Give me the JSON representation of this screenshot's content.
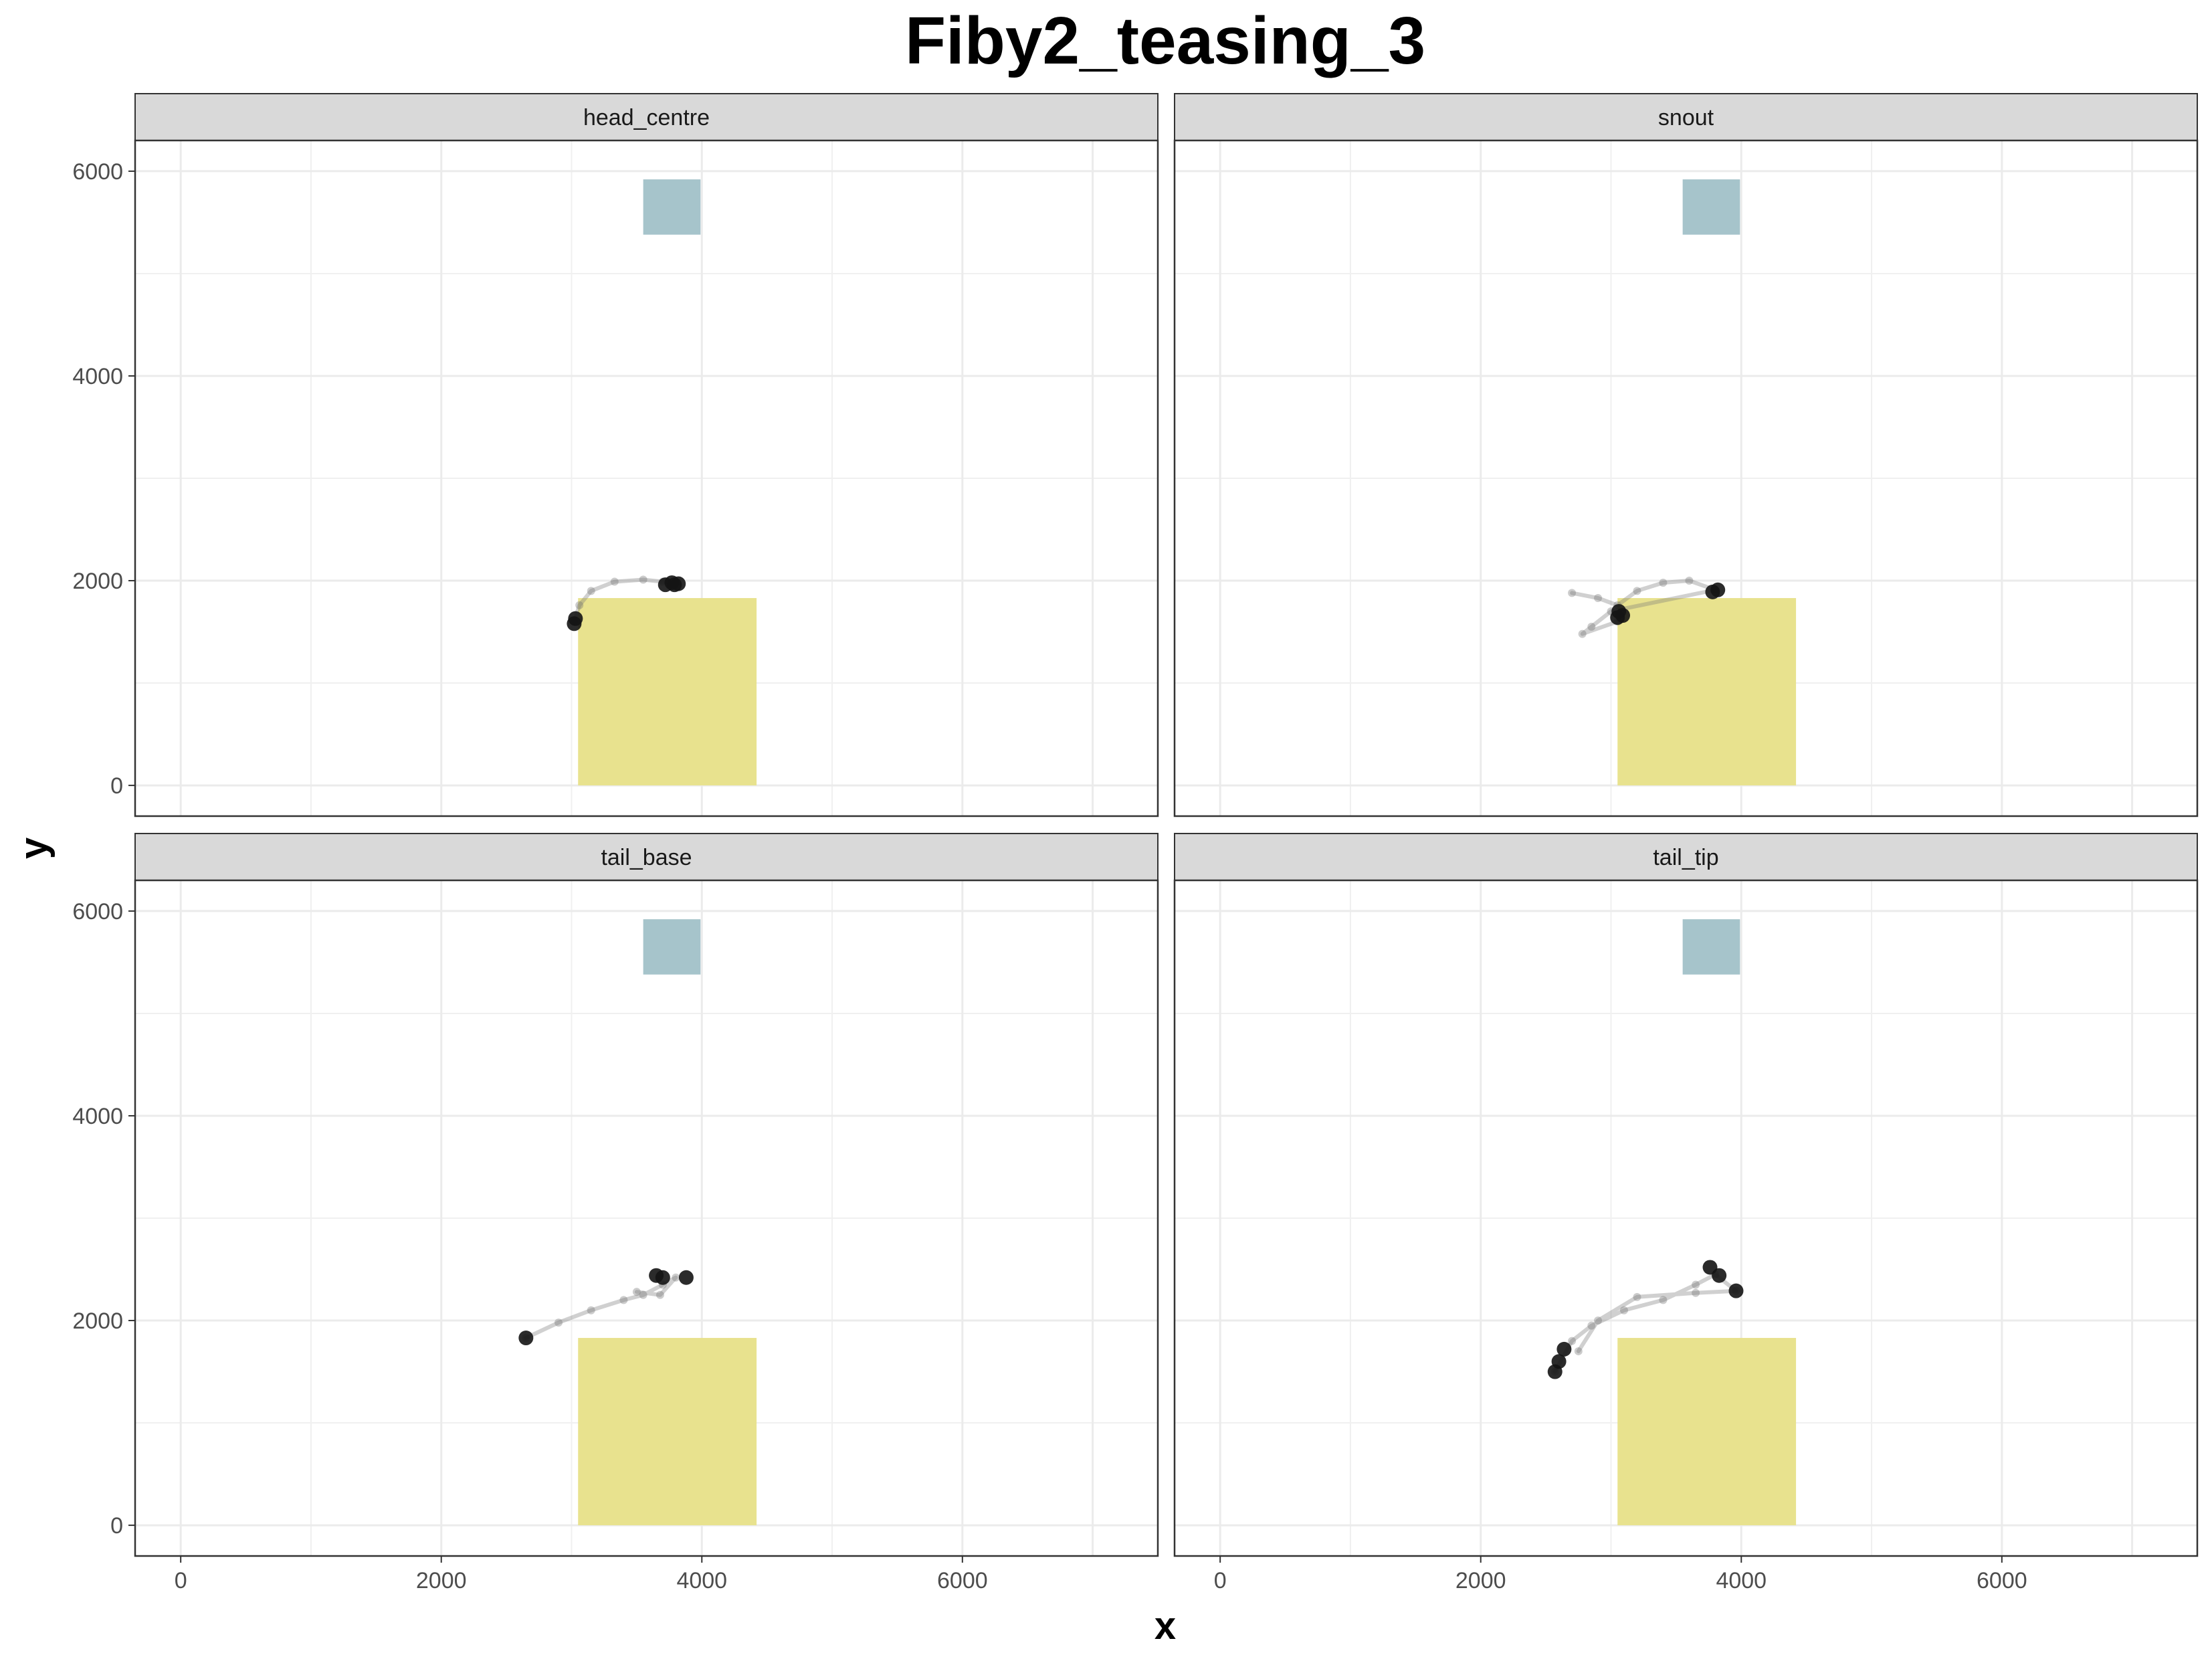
{
  "chart_data": {
    "type": "scatter",
    "title": "Fiby2_teasing_3",
    "xlabel": "x",
    "ylabel": "y",
    "xlim": [
      -350,
      7500
    ],
    "ylim": [
      -300,
      6300
    ],
    "x_ticks": [
      0,
      2000,
      4000,
      6000
    ],
    "x_tick_labels": [
      "0",
      "2000",
      "4000",
      "6000"
    ],
    "y_ticks": [
      0,
      2000,
      4000,
      6000
    ],
    "y_tick_labels": [
      "0",
      "2000",
      "4000",
      "6000"
    ],
    "grid": true,
    "legend": "none",
    "regions": [
      {
        "color": "#a6c4cb",
        "xmin": 3550,
        "xmax": 3990,
        "ymin": 5380,
        "ymax": 5920
      },
      {
        "color": "#e8e28e",
        "xmin": 3050,
        "xmax": 4420,
        "ymin": 0,
        "ymax": 1830
      }
    ],
    "panels": [
      {
        "label": "head_centre",
        "dense": [
          [
            3020,
            1580
          ],
          [
            3030,
            1630
          ],
          [
            3720,
            1960
          ],
          [
            3770,
            1980
          ],
          [
            3820,
            1970
          ],
          [
            3790,
            1960
          ]
        ],
        "path": [
          [
            3020,
            1600
          ],
          [
            3060,
            1760
          ],
          [
            3150,
            1900
          ],
          [
            3330,
            1990
          ],
          [
            3550,
            2010
          ],
          [
            3700,
            1990
          ],
          [
            3800,
            1980
          ]
        ]
      },
      {
        "label": "snout",
        "dense": [
          [
            3050,
            1640
          ],
          [
            3060,
            1700
          ],
          [
            3090,
            1660
          ],
          [
            3780,
            1890
          ],
          [
            3820,
            1910
          ]
        ],
        "path": [
          [
            2700,
            1880
          ],
          [
            2900,
            1830
          ],
          [
            3050,
            1760
          ],
          [
            3200,
            1900
          ],
          [
            3400,
            1980
          ],
          [
            3600,
            2000
          ],
          [
            3800,
            1910
          ],
          [
            3000,
            1700
          ],
          [
            2850,
            1550
          ],
          [
            2780,
            1480
          ],
          [
            3050,
            1600
          ]
        ]
      },
      {
        "label": "tail_base",
        "dense": [
          [
            2650,
            1830
          ],
          [
            3650,
            2440
          ],
          [
            3700,
            2420
          ],
          [
            3880,
            2420
          ]
        ],
        "path": [
          [
            2650,
            1830
          ],
          [
            2900,
            1980
          ],
          [
            3150,
            2100
          ],
          [
            3400,
            2200
          ],
          [
            3550,
            2250
          ],
          [
            3700,
            2350
          ],
          [
            3800,
            2420
          ],
          [
            3680,
            2250
          ],
          [
            3500,
            2280
          ]
        ]
      },
      {
        "label": "tail_tip",
        "dense": [
          [
            2570,
            1500
          ],
          [
            2600,
            1600
          ],
          [
            2640,
            1720
          ],
          [
            3760,
            2520
          ],
          [
            3830,
            2440
          ],
          [
            3960,
            2290
          ]
        ],
        "path": [
          [
            2570,
            1500
          ],
          [
            2700,
            1800
          ],
          [
            2850,
            1950
          ],
          [
            3100,
            2100
          ],
          [
            3400,
            2200
          ],
          [
            3650,
            2350
          ],
          [
            3800,
            2450
          ],
          [
            3960,
            2290
          ],
          [
            3650,
            2270
          ],
          [
            3200,
            2230
          ],
          [
            2900,
            2000
          ],
          [
            2750,
            1700
          ]
        ]
      }
    ]
  }
}
